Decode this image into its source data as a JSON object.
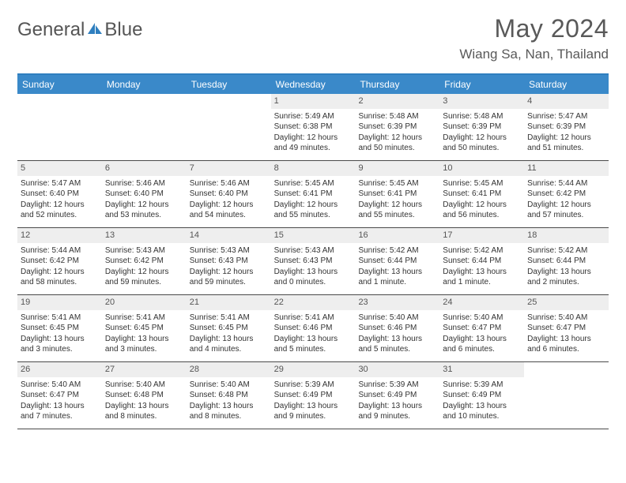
{
  "logo": {
    "text1": "General",
    "text2": "Blue",
    "icon_color": "#2f7fbf"
  },
  "header": {
    "title": "May 2024",
    "location": "Wiang Sa, Nan, Thailand"
  },
  "colors": {
    "header_bar": "#3a89c9",
    "header_border": "#2f7fbf",
    "daynum_bg": "#eeeeee",
    "week_border": "#4a4a4a",
    "text": "#333333",
    "title_text": "#595959"
  },
  "weekdays": [
    "Sunday",
    "Monday",
    "Tuesday",
    "Wednesday",
    "Thursday",
    "Friday",
    "Saturday"
  ],
  "weeks": [
    [
      {
        "n": "",
        "lines": []
      },
      {
        "n": "",
        "lines": []
      },
      {
        "n": "",
        "lines": []
      },
      {
        "n": "1",
        "lines": [
          "Sunrise: 5:49 AM",
          "Sunset: 6:38 PM",
          "Daylight: 12 hours and 49 minutes."
        ]
      },
      {
        "n": "2",
        "lines": [
          "Sunrise: 5:48 AM",
          "Sunset: 6:39 PM",
          "Daylight: 12 hours and 50 minutes."
        ]
      },
      {
        "n": "3",
        "lines": [
          "Sunrise: 5:48 AM",
          "Sunset: 6:39 PM",
          "Daylight: 12 hours and 50 minutes."
        ]
      },
      {
        "n": "4",
        "lines": [
          "Sunrise: 5:47 AM",
          "Sunset: 6:39 PM",
          "Daylight: 12 hours and 51 minutes."
        ]
      }
    ],
    [
      {
        "n": "5",
        "lines": [
          "Sunrise: 5:47 AM",
          "Sunset: 6:40 PM",
          "Daylight: 12 hours and 52 minutes."
        ]
      },
      {
        "n": "6",
        "lines": [
          "Sunrise: 5:46 AM",
          "Sunset: 6:40 PM",
          "Daylight: 12 hours and 53 minutes."
        ]
      },
      {
        "n": "7",
        "lines": [
          "Sunrise: 5:46 AM",
          "Sunset: 6:40 PM",
          "Daylight: 12 hours and 54 minutes."
        ]
      },
      {
        "n": "8",
        "lines": [
          "Sunrise: 5:45 AM",
          "Sunset: 6:41 PM",
          "Daylight: 12 hours and 55 minutes."
        ]
      },
      {
        "n": "9",
        "lines": [
          "Sunrise: 5:45 AM",
          "Sunset: 6:41 PM",
          "Daylight: 12 hours and 55 minutes."
        ]
      },
      {
        "n": "10",
        "lines": [
          "Sunrise: 5:45 AM",
          "Sunset: 6:41 PM",
          "Daylight: 12 hours and 56 minutes."
        ]
      },
      {
        "n": "11",
        "lines": [
          "Sunrise: 5:44 AM",
          "Sunset: 6:42 PM",
          "Daylight: 12 hours and 57 minutes."
        ]
      }
    ],
    [
      {
        "n": "12",
        "lines": [
          "Sunrise: 5:44 AM",
          "Sunset: 6:42 PM",
          "Daylight: 12 hours and 58 minutes."
        ]
      },
      {
        "n": "13",
        "lines": [
          "Sunrise: 5:43 AM",
          "Sunset: 6:42 PM",
          "Daylight: 12 hours and 59 minutes."
        ]
      },
      {
        "n": "14",
        "lines": [
          "Sunrise: 5:43 AM",
          "Sunset: 6:43 PM",
          "Daylight: 12 hours and 59 minutes."
        ]
      },
      {
        "n": "15",
        "lines": [
          "Sunrise: 5:43 AM",
          "Sunset: 6:43 PM",
          "Daylight: 13 hours and 0 minutes."
        ]
      },
      {
        "n": "16",
        "lines": [
          "Sunrise: 5:42 AM",
          "Sunset: 6:44 PM",
          "Daylight: 13 hours and 1 minute."
        ]
      },
      {
        "n": "17",
        "lines": [
          "Sunrise: 5:42 AM",
          "Sunset: 6:44 PM",
          "Daylight: 13 hours and 1 minute."
        ]
      },
      {
        "n": "18",
        "lines": [
          "Sunrise: 5:42 AM",
          "Sunset: 6:44 PM",
          "Daylight: 13 hours and 2 minutes."
        ]
      }
    ],
    [
      {
        "n": "19",
        "lines": [
          "Sunrise: 5:41 AM",
          "Sunset: 6:45 PM",
          "Daylight: 13 hours and 3 minutes."
        ]
      },
      {
        "n": "20",
        "lines": [
          "Sunrise: 5:41 AM",
          "Sunset: 6:45 PM",
          "Daylight: 13 hours and 3 minutes."
        ]
      },
      {
        "n": "21",
        "lines": [
          "Sunrise: 5:41 AM",
          "Sunset: 6:45 PM",
          "Daylight: 13 hours and 4 minutes."
        ]
      },
      {
        "n": "22",
        "lines": [
          "Sunrise: 5:41 AM",
          "Sunset: 6:46 PM",
          "Daylight: 13 hours and 5 minutes."
        ]
      },
      {
        "n": "23",
        "lines": [
          "Sunrise: 5:40 AM",
          "Sunset: 6:46 PM",
          "Daylight: 13 hours and 5 minutes."
        ]
      },
      {
        "n": "24",
        "lines": [
          "Sunrise: 5:40 AM",
          "Sunset: 6:47 PM",
          "Daylight: 13 hours and 6 minutes."
        ]
      },
      {
        "n": "25",
        "lines": [
          "Sunrise: 5:40 AM",
          "Sunset: 6:47 PM",
          "Daylight: 13 hours and 6 minutes."
        ]
      }
    ],
    [
      {
        "n": "26",
        "lines": [
          "Sunrise: 5:40 AM",
          "Sunset: 6:47 PM",
          "Daylight: 13 hours and 7 minutes."
        ]
      },
      {
        "n": "27",
        "lines": [
          "Sunrise: 5:40 AM",
          "Sunset: 6:48 PM",
          "Daylight: 13 hours and 8 minutes."
        ]
      },
      {
        "n": "28",
        "lines": [
          "Sunrise: 5:40 AM",
          "Sunset: 6:48 PM",
          "Daylight: 13 hours and 8 minutes."
        ]
      },
      {
        "n": "29",
        "lines": [
          "Sunrise: 5:39 AM",
          "Sunset: 6:49 PM",
          "Daylight: 13 hours and 9 minutes."
        ]
      },
      {
        "n": "30",
        "lines": [
          "Sunrise: 5:39 AM",
          "Sunset: 6:49 PM",
          "Daylight: 13 hours and 9 minutes."
        ]
      },
      {
        "n": "31",
        "lines": [
          "Sunrise: 5:39 AM",
          "Sunset: 6:49 PM",
          "Daylight: 13 hours and 10 minutes."
        ]
      },
      {
        "n": "",
        "lines": []
      }
    ]
  ]
}
